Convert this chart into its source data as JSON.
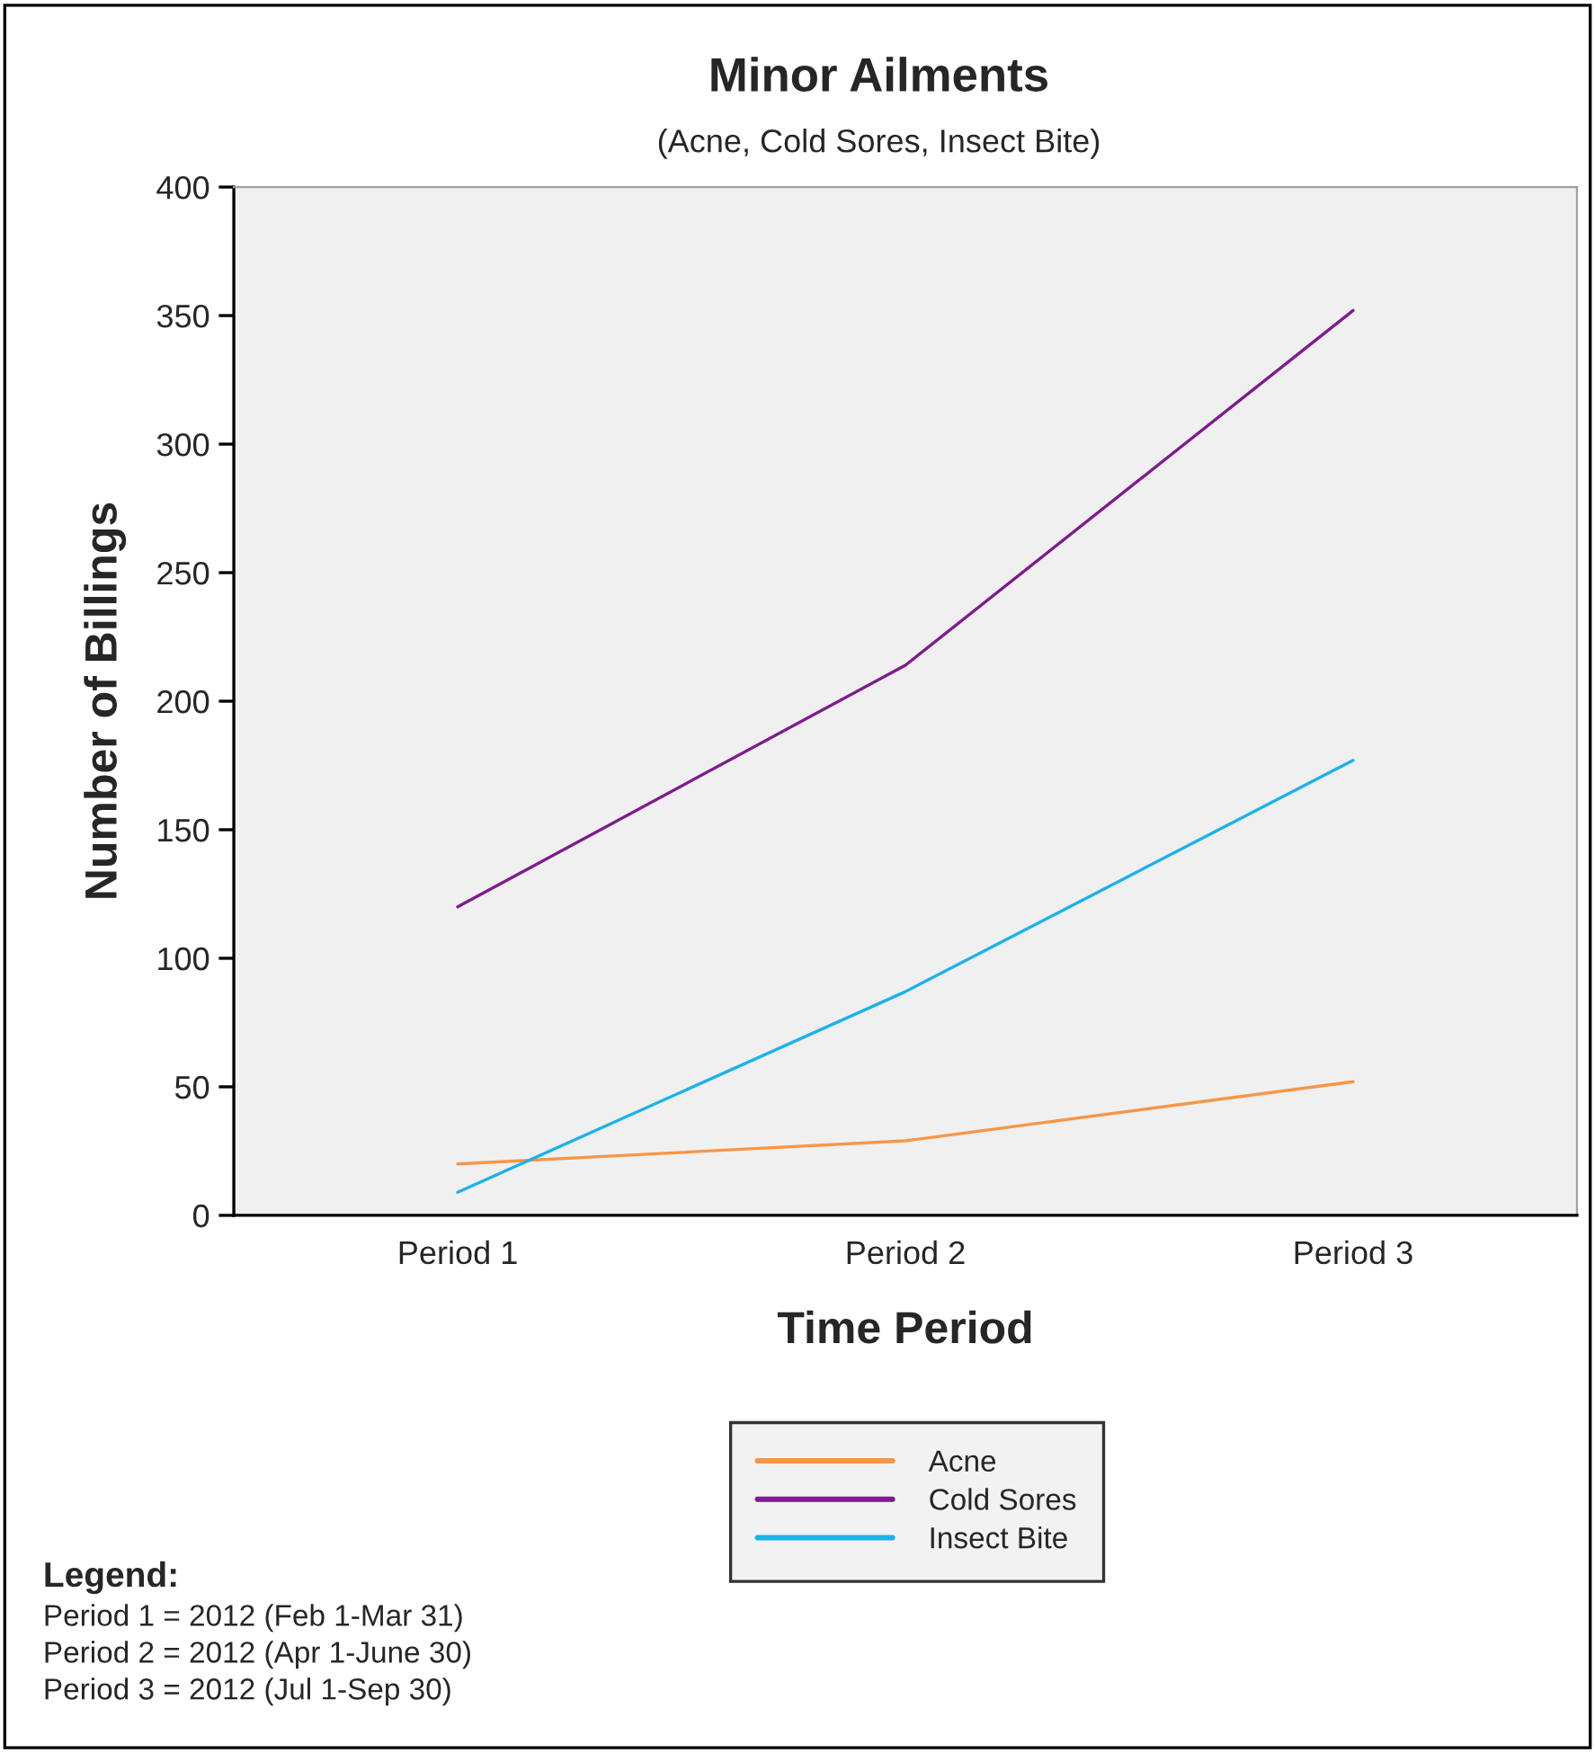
{
  "chart_data": {
    "type": "line",
    "title": "Minor Ailments",
    "subtitle": "(Acne, Cold Sores, Insect Bite)",
    "xlabel": "Time Period",
    "ylabel": "Number of Billings",
    "categories": [
      "Period 1",
      "Period 2",
      "Period 3"
    ],
    "series": [
      {
        "name": "Acne",
        "color": "#f79646",
        "values": [
          20,
          29,
          52
        ]
      },
      {
        "name": "Cold Sores",
        "color": "#7f1a8f",
        "values": [
          120,
          214,
          352
        ]
      },
      {
        "name": "Insect Bite",
        "color": "#1ab2ea",
        "values": [
          9,
          87,
          177
        ]
      }
    ],
    "ylim": [
      0,
      400
    ],
    "yticks": [
      0,
      50,
      100,
      150,
      200,
      250,
      300,
      350,
      400
    ],
    "grid": false,
    "legend": "bottom",
    "marker": "none",
    "line_style": "solid",
    "annotations": [
      "Legend:",
      "Period 1 = 2012 (Feb 1-Mar 31)",
      "Period 2 = 2012 (Apr 1-June 30)",
      "Period 3 = 2012 (Jul 1-Sep 30)"
    ]
  }
}
